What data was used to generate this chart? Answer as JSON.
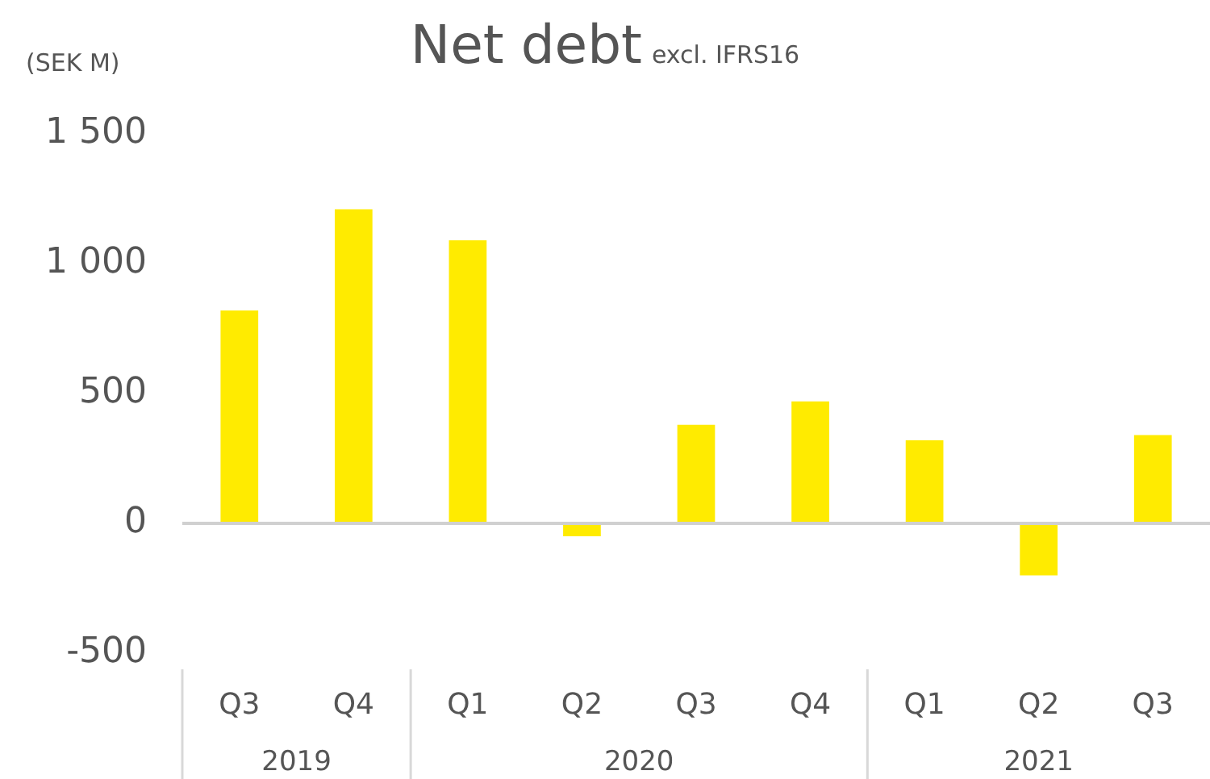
{
  "chart_data": {
    "type": "bar",
    "title": "Net debt",
    "subtitle": "excl. IFRS16",
    "ylabel": "(SEK M)",
    "categories": [
      "Q3",
      "Q4",
      "Q1",
      "Q2",
      "Q3",
      "Q4",
      "Q1",
      "Q2",
      "Q3"
    ],
    "values": [
      820,
      1210,
      1090,
      -50,
      380,
      470,
      320,
      -200,
      340
    ],
    "color": "#ffeb00",
    "ylim": [
      -500,
      1500
    ],
    "yticks": [
      {
        "value": -500,
        "label": "-500"
      },
      0,
      500,
      {
        "value": 1000,
        "label": "1 000"
      },
      {
        "value": 1500,
        "label": "1 500"
      }
    ],
    "ref_lines": [
      {
        "axis": "y",
        "value": 0,
        "color": "#d0d0d0"
      }
    ],
    "grid": false,
    "legend": false,
    "annotations": [
      "2019",
      "2020",
      "2021"
    ]
  }
}
